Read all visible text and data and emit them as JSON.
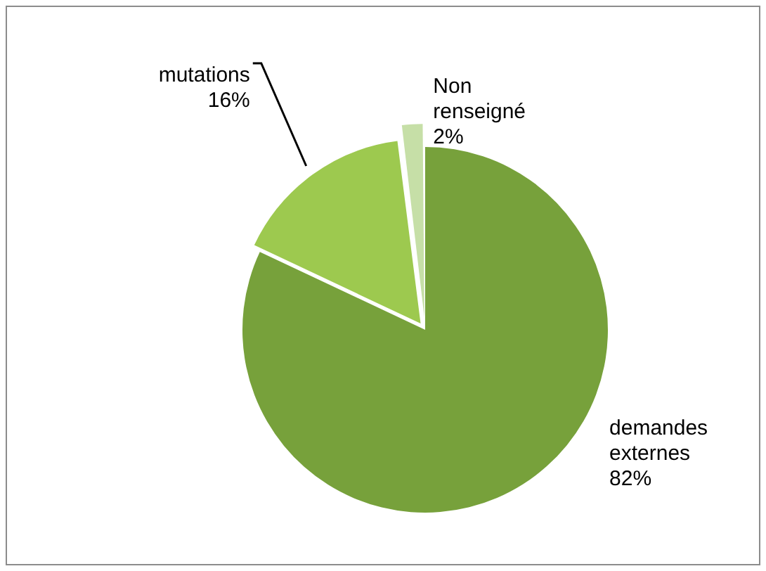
{
  "chart_data": {
    "type": "pie",
    "categories": [
      "demandes externes",
      "mutations",
      "Non renseigné"
    ],
    "values": [
      82,
      16,
      2
    ],
    "colors": [
      "#77a13b",
      "#9dc94f",
      "#c6dfa7"
    ],
    "value_labels": [
      "82%",
      "16%",
      "2%"
    ],
    "legend": false
  }
}
